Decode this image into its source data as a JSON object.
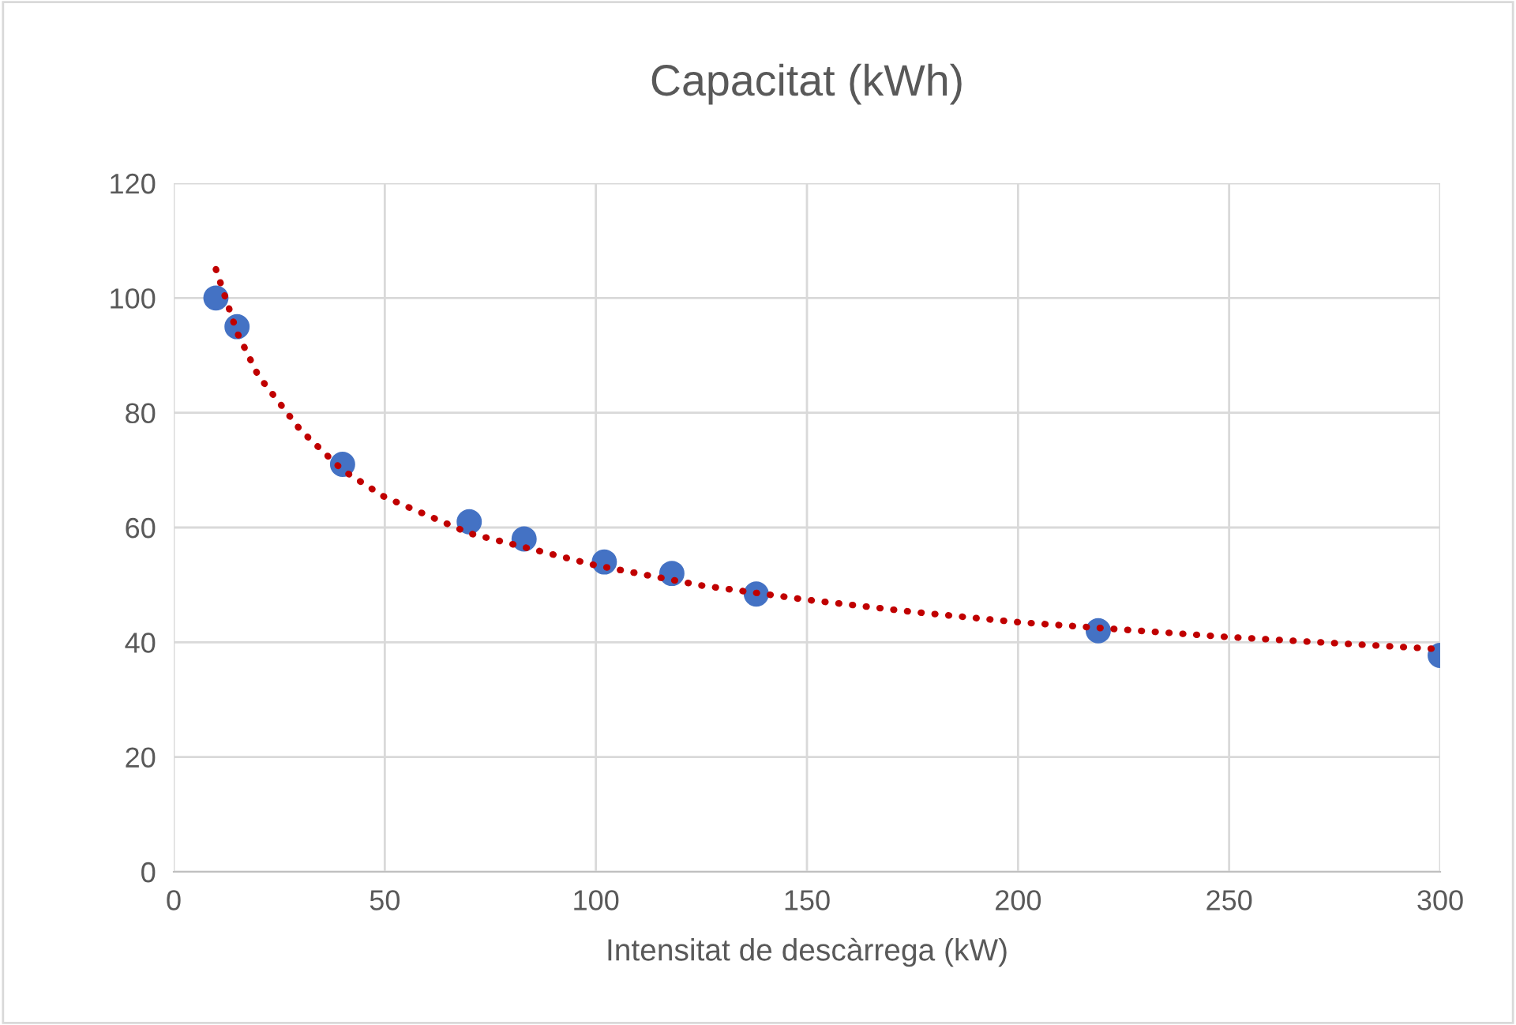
{
  "chart_data": {
    "type": "scatter",
    "title": "Capacitat (kWh)",
    "xlabel": "Intensitat de descàrrega (kW)",
    "xlim": [
      0,
      300
    ],
    "xticks": [
      0,
      50,
      100,
      150,
      200,
      250,
      300
    ],
    "ylim": [
      0,
      120
    ],
    "yticks": [
      0,
      20,
      40,
      60,
      80,
      100,
      120
    ],
    "grid": true,
    "legend": false,
    "series": [
      {
        "type": "line",
        "color": "#c00000",
        "line_style": "dotted",
        "marker": "none",
        "x": [
          10,
          15,
          20,
          30,
          40,
          50,
          70,
          100,
          125,
          150,
          175,
          200,
          250,
          300
        ],
        "values": [
          105,
          94,
          86.5,
          77,
          70,
          65.3,
          59,
          53.4,
          49.9,
          47.4,
          45.3,
          43.5,
          40.9,
          38.8
        ]
      },
      {
        "color": "#4472c4",
        "marker": "circle",
        "x": [
          10,
          15,
          40,
          70,
          83,
          102,
          118,
          138,
          219,
          300
        ],
        "values": [
          100,
          95,
          71,
          61,
          58,
          54,
          52,
          48.4,
          42,
          37.7
        ]
      }
    ]
  }
}
